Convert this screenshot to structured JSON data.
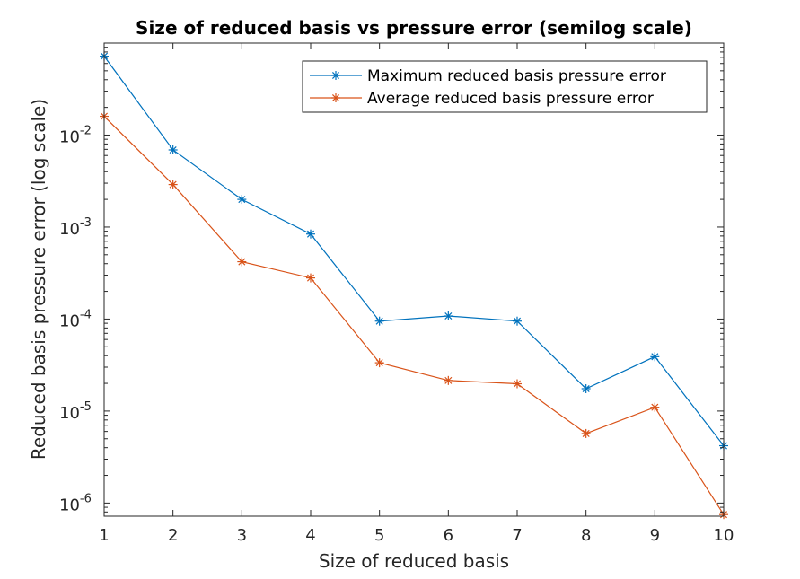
{
  "chart_data": {
    "type": "line",
    "title": "Size of reduced basis vs pressure error (semilog scale)",
    "xlabel": "Size of reduced basis",
    "ylabel": "Reduced basis pressure error (log scale)",
    "yscale": "log",
    "xlim": [
      1,
      10
    ],
    "ylim": [
      7.2e-07,
      0.1
    ],
    "x": [
      1,
      2,
      3,
      4,
      5,
      6,
      7,
      8,
      9,
      10
    ],
    "x_ticks": [
      "1",
      "2",
      "3",
      "4",
      "5",
      "6",
      "7",
      "8",
      "9",
      "10"
    ],
    "y_ticks": [
      {
        "value": 1e-06,
        "base": "10",
        "exp": "-6"
      },
      {
        "value": 1e-05,
        "base": "10",
        "exp": "-5"
      },
      {
        "value": 0.0001,
        "base": "10",
        "exp": "-4"
      },
      {
        "value": 0.001,
        "base": "10",
        "exp": "-3"
      },
      {
        "value": 0.01,
        "base": "10",
        "exp": "-2"
      }
    ],
    "grid": false,
    "legend_position": "top-right",
    "series": [
      {
        "name": "Maximum reduced basis pressure error",
        "color": "#0072BD",
        "marker": "asterisk",
        "values": [
          0.072,
          0.0069,
          0.002,
          0.00084,
          9.5e-05,
          0.000108,
          9.5e-05,
          1.75e-05,
          3.9e-05,
          4.2e-06
        ]
      },
      {
        "name": "Average reduced basis pressure error",
        "color": "#D95319",
        "marker": "asterisk",
        "values": [
          0.016,
          0.0029,
          0.00042,
          0.00028,
          3.35e-05,
          2.15e-05,
          1.98e-05,
          5.7e-06,
          1.1e-05,
          7.5e-07
        ]
      }
    ]
  }
}
